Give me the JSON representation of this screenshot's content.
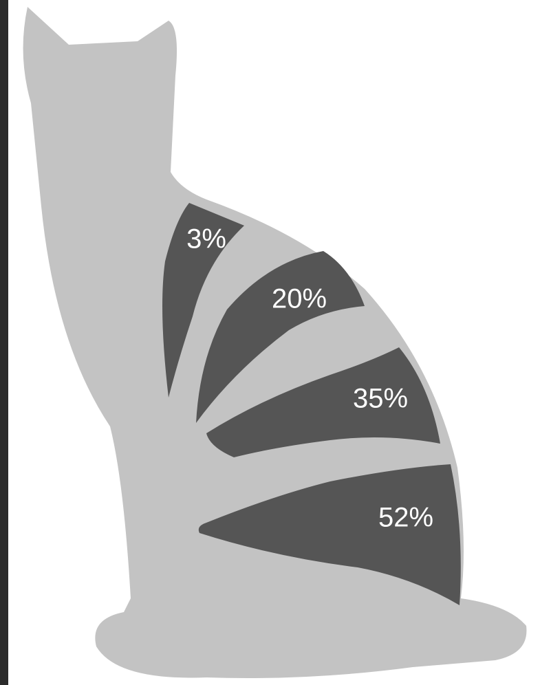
{
  "stripes": [
    "3%",
    "20%",
    "35%",
    "52%"
  ]
}
